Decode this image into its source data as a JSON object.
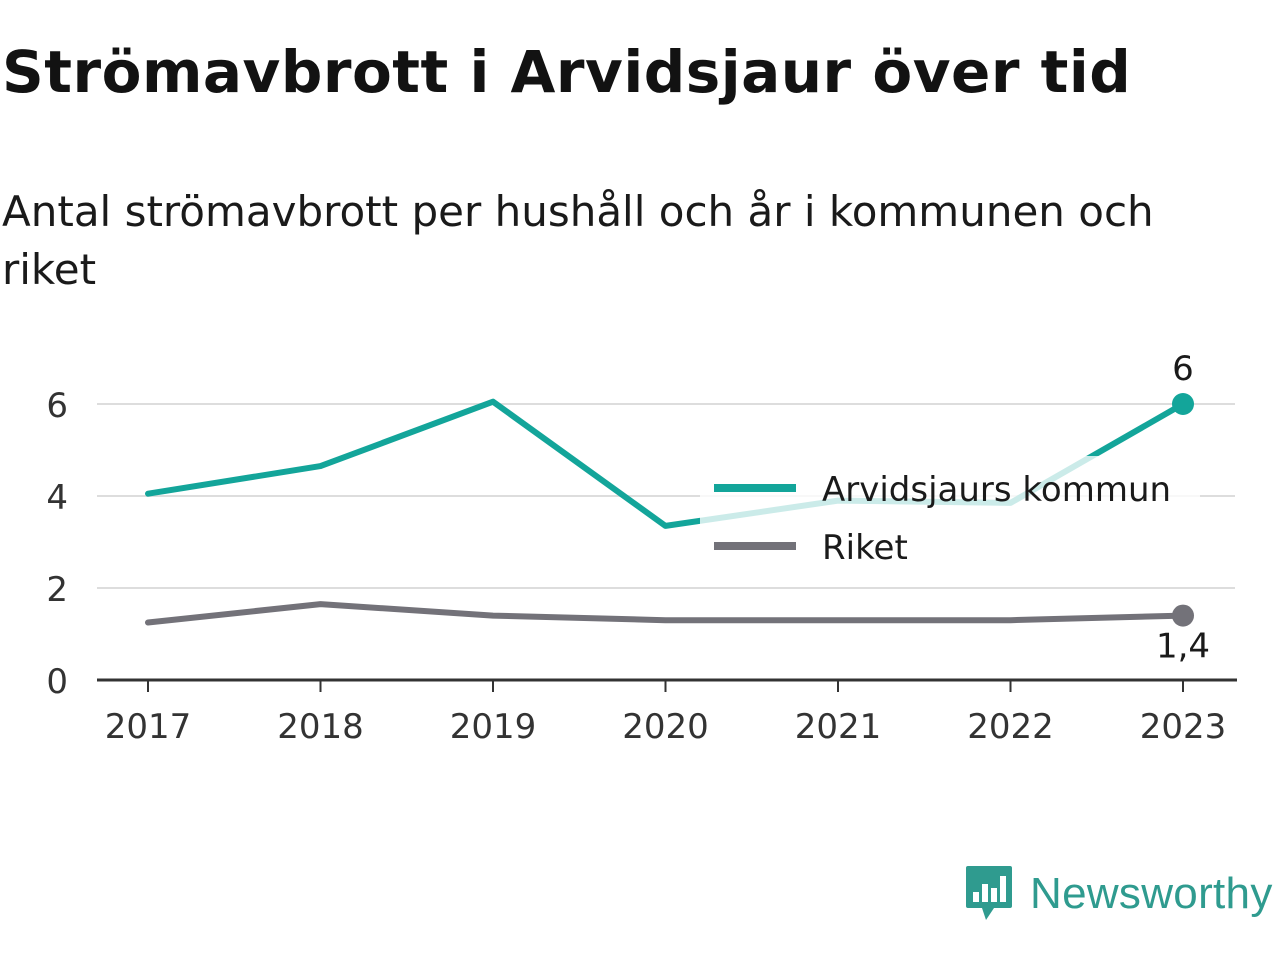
{
  "title": "Strömavbrott i Arvidsjaur över tid",
  "subtitle": "Antal strömavbrott per hushåll och år i kommunen och riket",
  "brand": {
    "name": "Newsworthy",
    "logo_icon": "newsworthy-logo-icon",
    "color": "#2f9b8f"
  },
  "chart_data": {
    "type": "line",
    "x": [
      "2017",
      "2018",
      "2019",
      "2020",
      "2021",
      "2022",
      "2023"
    ],
    "ylim": [
      0,
      7
    ],
    "yticks": [
      "0",
      "2",
      "4",
      "6"
    ],
    "grid": true,
    "legend_placement": "right",
    "series": [
      {
        "name": "Arvidsjaurs kommun",
        "values": [
          4.05,
          4.65,
          6.05,
          3.35,
          3.9,
          3.85,
          6.0
        ],
        "color": "#13a59a",
        "end_label": "6"
      },
      {
        "name": "Riket",
        "values": [
          1.25,
          1.65,
          1.4,
          1.3,
          1.3,
          1.3,
          1.4
        ],
        "color": "#737279",
        "end_label": "1,4"
      }
    ]
  }
}
